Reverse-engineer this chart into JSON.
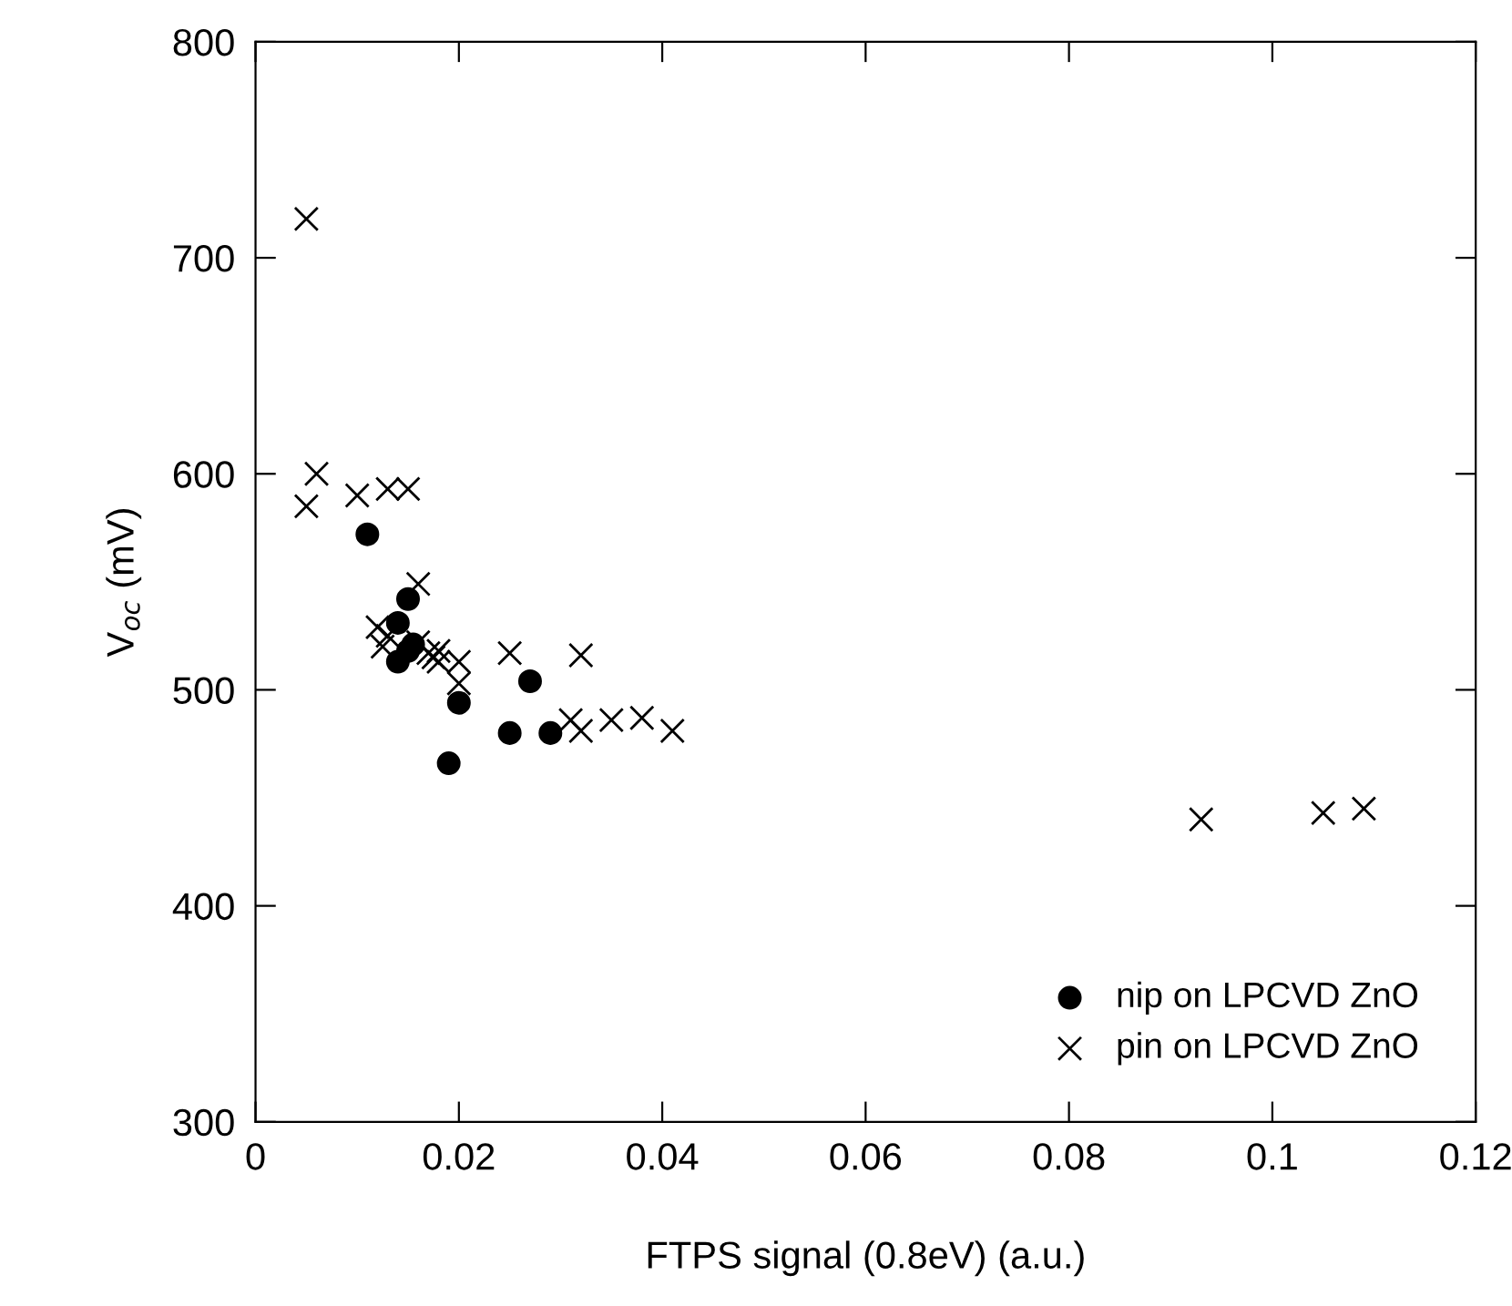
{
  "chart_data": {
    "type": "scatter",
    "xlabel": "FTPS signal (0.8eV) (a.u.)",
    "ylabel": "V$_{oc}$ (mV)",
    "xlim": [
      0,
      0.12
    ],
    "xticks": [
      0,
      0.02,
      0.04,
      0.06,
      0.08,
      0.1,
      0.12
    ],
    "ylim": [
      300,
      800
    ],
    "yticks": [
      300,
      400,
      500,
      600,
      700,
      800
    ],
    "grid": false,
    "legend": "bottom right",
    "series": [
      {
        "name": "nip on LPCVD ZnO",
        "color": "#000000",
        "marker": "circle",
        "x": [
          0.011,
          0.015,
          0.014,
          0.0155,
          0.014,
          0.02,
          0.019,
          0.025,
          0.027,
          0.029,
          0.015
        ],
        "values": [
          572,
          542,
          531,
          521,
          513,
          494,
          466,
          480,
          504,
          480,
          518
        ]
      },
      {
        "name": "pin on LPCVD ZnO",
        "color": "#000000",
        "marker": "cross",
        "x": [
          0.005,
          0.005,
          0.006,
          0.01,
          0.013,
          0.015,
          0.016,
          0.012,
          0.0125,
          0.013,
          0.016,
          0.017,
          0.018,
          0.0175,
          0.018,
          0.02,
          0.02,
          0.025,
          0.032,
          0.031,
          0.032,
          0.035,
          0.038,
          0.041,
          0.093,
          0.105,
          0.109
        ],
        "values": [
          718,
          585,
          600,
          590,
          593,
          593,
          549,
          529,
          520,
          525,
          522,
          517,
          513,
          515,
          518,
          513,
          503,
          517,
          516,
          486,
          481,
          486,
          487,
          481,
          440,
          443,
          445
        ]
      }
    ]
  }
}
